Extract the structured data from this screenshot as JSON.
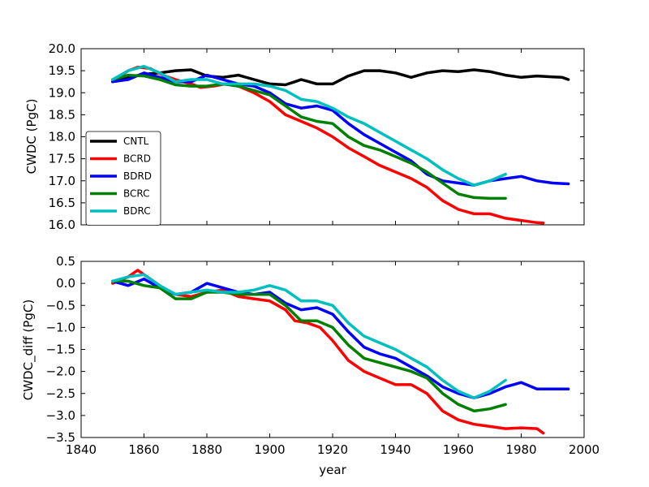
{
  "chart_data": [
    {
      "type": "line",
      "title": "",
      "xlabel": "",
      "ylabel": "CWDC (PgC)",
      "xlim": [
        1840,
        2000
      ],
      "ylim": [
        16.0,
        20.0
      ],
      "yticks": [
        16.0,
        16.5,
        17.0,
        17.5,
        18.0,
        18.5,
        19.0,
        19.5,
        20.0
      ],
      "yticklabels": [
        "16.0",
        "16.5",
        "17.0",
        "17.5",
        "18.0",
        "18.5",
        "19.0",
        "19.5",
        "20.0"
      ],
      "xticks": [
        1840,
        1860,
        1880,
        1900,
        1920,
        1940,
        1960,
        1980,
        2000
      ],
      "show_xticklabels": false,
      "legend": {
        "placement": "lower-left"
      },
      "series": [
        {
          "name": "CNTL",
          "color": "#000000",
          "x": [
            1850,
            1855,
            1860,
            1865,
            1870,
            1875,
            1880,
            1885,
            1890,
            1895,
            1900,
            1905,
            1908,
            1910,
            1915,
            1920,
            1925,
            1930,
            1935,
            1940,
            1945,
            1950,
            1955,
            1960,
            1965,
            1970,
            1975,
            1980,
            1985,
            1990,
            1993,
            1995
          ],
          "y": [
            19.25,
            19.35,
            19.42,
            19.45,
            19.5,
            19.52,
            19.38,
            19.35,
            19.4,
            19.3,
            19.2,
            19.18,
            19.25,
            19.3,
            19.2,
            19.2,
            19.38,
            19.5,
            19.5,
            19.45,
            19.35,
            19.45,
            19.5,
            19.48,
            19.52,
            19.48,
            19.4,
            19.35,
            19.38,
            19.36,
            19.35,
            19.3
          ]
        },
        {
          "name": "BCRD",
          "color": "#ff0000",
          "x": [
            1850,
            1855,
            1858,
            1862,
            1866,
            1870,
            1875,
            1878,
            1882,
            1886,
            1890,
            1895,
            1900,
            1905,
            1910,
            1915,
            1920,
            1925,
            1930,
            1935,
            1940,
            1945,
            1950,
            1955,
            1960,
            1965,
            1970,
            1975,
            1980,
            1985,
            1987
          ],
          "y": [
            19.25,
            19.5,
            19.58,
            19.55,
            19.4,
            19.3,
            19.2,
            19.12,
            19.15,
            19.2,
            19.15,
            19.0,
            18.8,
            18.5,
            18.35,
            18.2,
            18.0,
            17.75,
            17.55,
            17.35,
            17.2,
            17.05,
            16.85,
            16.55,
            16.35,
            16.25,
            16.25,
            16.15,
            16.1,
            16.05,
            16.04
          ]
        },
        {
          "name": "BDRD",
          "color": "#0000ff",
          "x": [
            1850,
            1855,
            1860,
            1865,
            1870,
            1875,
            1880,
            1885,
            1890,
            1895,
            1900,
            1905,
            1910,
            1915,
            1920,
            1925,
            1930,
            1935,
            1940,
            1945,
            1950,
            1955,
            1960,
            1965,
            1970,
            1975,
            1980,
            1985,
            1990,
            1995
          ],
          "y": [
            19.25,
            19.3,
            19.45,
            19.35,
            19.25,
            19.25,
            19.4,
            19.3,
            19.2,
            19.15,
            19.0,
            18.75,
            18.65,
            18.7,
            18.6,
            18.3,
            18.05,
            17.85,
            17.65,
            17.45,
            17.15,
            17.0,
            16.95,
            16.9,
            17.0,
            17.05,
            17.1,
            17.0,
            16.95,
            16.93
          ]
        },
        {
          "name": "BCRC",
          "color": "#008000",
          "x": [
            1850,
            1855,
            1860,
            1865,
            1870,
            1875,
            1880,
            1885,
            1890,
            1895,
            1900,
            1905,
            1910,
            1915,
            1920,
            1925,
            1930,
            1935,
            1940,
            1945,
            1950,
            1955,
            1960,
            1965,
            1970,
            1975
          ],
          "y": [
            19.3,
            19.4,
            19.38,
            19.3,
            19.18,
            19.15,
            19.15,
            19.2,
            19.15,
            19.05,
            18.95,
            18.7,
            18.45,
            18.35,
            18.3,
            18.0,
            17.8,
            17.7,
            17.55,
            17.4,
            17.2,
            16.95,
            16.7,
            16.62,
            16.6,
            16.6
          ]
        },
        {
          "name": "BDRC",
          "color": "#00bfbf",
          "x": [
            1850,
            1855,
            1860,
            1865,
            1870,
            1875,
            1880,
            1885,
            1890,
            1895,
            1900,
            1905,
            1910,
            1915,
            1920,
            1925,
            1930,
            1935,
            1940,
            1945,
            1950,
            1955,
            1960,
            1965,
            1970,
            1975
          ],
          "y": [
            19.3,
            19.5,
            19.6,
            19.45,
            19.25,
            19.3,
            19.3,
            19.2,
            19.2,
            19.2,
            19.15,
            19.05,
            18.85,
            18.8,
            18.65,
            18.45,
            18.3,
            18.1,
            17.9,
            17.7,
            17.5,
            17.25,
            17.05,
            16.9,
            17.0,
            17.15
          ]
        }
      ]
    },
    {
      "type": "line",
      "title": "",
      "xlabel": "year",
      "ylabel": "CWDC_diff (PgC)",
      "xlim": [
        1840,
        2000
      ],
      "ylim": [
        -3.5,
        0.5
      ],
      "yticks": [
        -3.5,
        -3.0,
        -2.5,
        -2.0,
        -1.5,
        -1.0,
        -0.5,
        0.0,
        0.5
      ],
      "yticklabels": [
        "−3.5",
        "−3.0",
        "−2.5",
        "−2.0",
        "−1.5",
        "−1.0",
        "−0.5",
        "0.0",
        "0.5"
      ],
      "xticks": [
        1840,
        1860,
        1880,
        1900,
        1920,
        1940,
        1960,
        1980,
        2000
      ],
      "xticklabels": [
        "1840",
        "1860",
        "1880",
        "1900",
        "1920",
        "1940",
        "1960",
        "1980",
        "2000"
      ],
      "series": [
        {
          "name": "BCRD",
          "color": "#ff0000",
          "x": [
            1850,
            1855,
            1858,
            1862,
            1866,
            1870,
            1875,
            1880,
            1885,
            1890,
            1895,
            1900,
            1905,
            1908,
            1912,
            1916,
            1920,
            1925,
            1930,
            1935,
            1940,
            1945,
            1950,
            1955,
            1960,
            1965,
            1970,
            1975,
            1980,
            1985,
            1987
          ],
          "y": [
            0.0,
            0.15,
            0.3,
            0.1,
            -0.1,
            -0.25,
            -0.3,
            -0.2,
            -0.15,
            -0.3,
            -0.35,
            -0.4,
            -0.6,
            -0.85,
            -0.9,
            -1.0,
            -1.3,
            -1.75,
            -2.0,
            -2.15,
            -2.3,
            -2.3,
            -2.5,
            -2.9,
            -3.1,
            -3.2,
            -3.25,
            -3.3,
            -3.28,
            -3.3,
            -3.4
          ]
        },
        {
          "name": "BDRD",
          "color": "#0000ff",
          "x": [
            1850,
            1855,
            1860,
            1865,
            1870,
            1875,
            1880,
            1885,
            1890,
            1895,
            1900,
            1905,
            1910,
            1915,
            1920,
            1925,
            1930,
            1935,
            1940,
            1945,
            1950,
            1955,
            1960,
            1965,
            1970,
            1975,
            1980,
            1985,
            1990,
            1995
          ],
          "y": [
            0.05,
            -0.05,
            0.1,
            -0.1,
            -0.25,
            -0.2,
            0.0,
            -0.1,
            -0.2,
            -0.25,
            -0.2,
            -0.45,
            -0.6,
            -0.55,
            -0.7,
            -1.1,
            -1.45,
            -1.6,
            -1.7,
            -1.9,
            -2.1,
            -2.35,
            -2.5,
            -2.6,
            -2.5,
            -2.35,
            -2.25,
            -2.4,
            -2.4,
            -2.4
          ]
        },
        {
          "name": "BCRC",
          "color": "#008000",
          "x": [
            1850,
            1855,
            1860,
            1865,
            1870,
            1875,
            1880,
            1885,
            1890,
            1895,
            1900,
            1905,
            1910,
            1915,
            1920,
            1925,
            1930,
            1935,
            1940,
            1945,
            1950,
            1955,
            1960,
            1965,
            1970,
            1975
          ],
          "y": [
            0.05,
            0.05,
            -0.05,
            -0.1,
            -0.35,
            -0.35,
            -0.2,
            -0.2,
            -0.25,
            -0.25,
            -0.25,
            -0.5,
            -0.85,
            -0.85,
            -1.0,
            -1.4,
            -1.7,
            -1.8,
            -1.9,
            -2.0,
            -2.15,
            -2.5,
            -2.75,
            -2.9,
            -2.85,
            -2.75
          ]
        },
        {
          "name": "BDRC",
          "color": "#00bfbf",
          "x": [
            1850,
            1855,
            1860,
            1865,
            1870,
            1875,
            1880,
            1885,
            1890,
            1895,
            1900,
            1905,
            1910,
            1915,
            1920,
            1925,
            1930,
            1935,
            1940,
            1945,
            1950,
            1955,
            1960,
            1965,
            1970,
            1975
          ],
          "y": [
            0.05,
            0.15,
            0.2,
            -0.05,
            -0.25,
            -0.2,
            -0.15,
            -0.2,
            -0.2,
            -0.15,
            -0.05,
            -0.15,
            -0.4,
            -0.4,
            -0.5,
            -0.9,
            -1.2,
            -1.35,
            -1.5,
            -1.7,
            -1.9,
            -2.2,
            -2.45,
            -2.6,
            -2.45,
            -2.2
          ]
        }
      ]
    }
  ]
}
